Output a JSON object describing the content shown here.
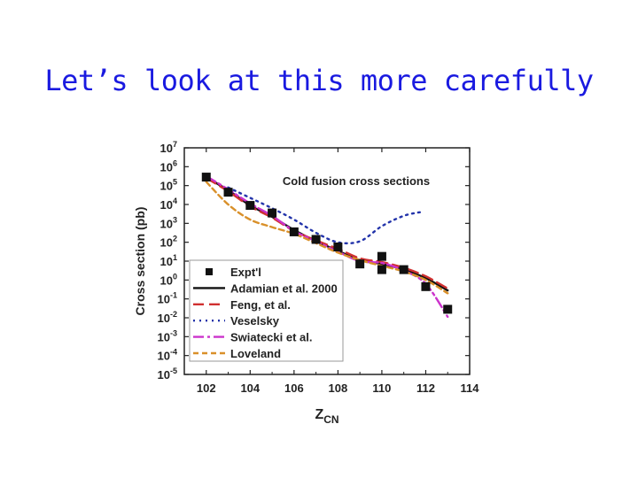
{
  "slide": {
    "title": "Let’s look at this more carefully"
  },
  "chart_data": {
    "type": "scatter",
    "annotation": "Cold fusion cross sections",
    "xlabel": "Z",
    "xlabel_sub": "CN",
    "ylabel": "Cross section (pb)",
    "xlim": [
      101,
      114
    ],
    "ylim_log10": [
      -5,
      7
    ],
    "y_scale": "log",
    "x_ticks": [
      {
        "value": 102,
        "label": "102"
      },
      {
        "value": 104,
        "label": "104"
      },
      {
        "value": 106,
        "label": "106"
      },
      {
        "value": 108,
        "label": "108"
      },
      {
        "value": 110,
        "label": "110"
      },
      {
        "value": 112,
        "label": "112"
      },
      {
        "value": 114,
        "label": "114"
      }
    ],
    "y_ticks": [
      {
        "exp": 7,
        "base": "10",
        "sup": "7"
      },
      {
        "exp": 6,
        "base": "10",
        "sup": "6"
      },
      {
        "exp": 5,
        "base": "10",
        "sup": "5"
      },
      {
        "exp": 4,
        "base": "10",
        "sup": "4"
      },
      {
        "exp": 3,
        "base": "10",
        "sup": "3"
      },
      {
        "exp": 2,
        "base": "10",
        "sup": "2"
      },
      {
        "exp": 1,
        "base": "10",
        "sup": "1"
      },
      {
        "exp": 0,
        "base": "10",
        "sup": "0"
      },
      {
        "exp": -1,
        "base": "10",
        "sup": "-1"
      },
      {
        "exp": -2,
        "base": "10",
        "sup": "-2"
      },
      {
        "exp": -3,
        "base": "10",
        "sup": "-3"
      },
      {
        "exp": -4,
        "base": "10",
        "sup": "-4"
      },
      {
        "exp": -5,
        "base": "10",
        "sup": "-5"
      }
    ],
    "legend_position": "bottom-left",
    "series": [
      {
        "name": "Expt'l",
        "kind": "points",
        "color": "#111111",
        "points": [
          [
            102,
            5.45
          ],
          [
            103,
            4.65
          ],
          [
            104,
            3.95
          ],
          [
            105,
            3.55
          ],
          [
            106,
            2.55
          ],
          [
            107,
            2.15
          ],
          [
            108,
            1.75
          ],
          [
            109,
            0.85
          ],
          [
            110,
            1.25
          ],
          [
            110,
            0.55
          ],
          [
            111,
            0.55
          ],
          [
            112,
            -0.35
          ],
          [
            113,
            -1.55
          ]
        ]
      },
      {
        "name": "Adamian et al. 2000",
        "kind": "line",
        "color": "#111111",
        "dash": "solid",
        "points": [
          [
            102,
            5.45
          ],
          [
            103,
            4.75
          ],
          [
            104,
            3.95
          ],
          [
            105,
            3.35
          ],
          [
            106,
            2.65
          ],
          [
            107,
            2.05
          ],
          [
            108,
            1.55
          ],
          [
            109,
            1.05
          ],
          [
            110,
            0.85
          ],
          [
            111,
            0.55
          ],
          [
            112,
            0.1
          ],
          [
            113,
            -0.55
          ]
        ]
      },
      {
        "name": "Feng, et al.",
        "kind": "line",
        "color": "#d03030",
        "dash": "long",
        "points": [
          [
            102,
            5.4
          ],
          [
            103,
            4.7
          ],
          [
            104,
            3.9
          ],
          [
            105,
            3.3
          ],
          [
            106,
            2.6
          ],
          [
            107,
            2.1
          ],
          [
            108,
            1.65
          ],
          [
            109,
            1.15
          ],
          [
            110,
            0.95
          ],
          [
            111,
            0.65
          ],
          [
            112,
            0.2
          ],
          [
            113,
            -0.45
          ]
        ]
      },
      {
        "name": "Veselsky",
        "kind": "line",
        "color": "#2233aa",
        "dash": "dot",
        "points": [
          [
            103,
            4.9
          ],
          [
            104,
            4.35
          ],
          [
            105,
            3.8
          ],
          [
            106,
            3.2
          ],
          [
            107,
            2.5
          ],
          [
            108,
            2.0
          ],
          [
            109,
            2.05
          ],
          [
            110,
            2.85
          ],
          [
            111,
            3.4
          ],
          [
            111.8,
            3.6
          ]
        ]
      },
      {
        "name": "Swiatecki et al.",
        "kind": "line",
        "color": "#cc33cc",
        "dash": "dashdot",
        "points": [
          [
            102,
            5.5
          ],
          [
            103,
            4.8
          ],
          [
            104,
            4.05
          ],
          [
            105,
            3.4
          ],
          [
            106,
            2.6
          ],
          [
            107,
            2.05
          ],
          [
            108,
            1.5
          ],
          [
            109,
            1.0
          ],
          [
            110,
            0.9
          ],
          [
            111,
            0.5
          ],
          [
            112,
            -0.2
          ],
          [
            113,
            -1.95
          ]
        ]
      },
      {
        "name": "Loveland",
        "kind": "line",
        "color": "#d9902a",
        "dash": "short",
        "points": [
          [
            102,
            5.2
          ],
          [
            103,
            4.0
          ],
          [
            104,
            3.2
          ],
          [
            105,
            2.8
          ],
          [
            106,
            2.45
          ],
          [
            107,
            1.95
          ],
          [
            108,
            1.45
          ],
          [
            109,
            1.05
          ],
          [
            110,
            0.75
          ],
          [
            111,
            0.45
          ],
          [
            112,
            0.0
          ],
          [
            113,
            -0.7
          ]
        ]
      }
    ]
  }
}
